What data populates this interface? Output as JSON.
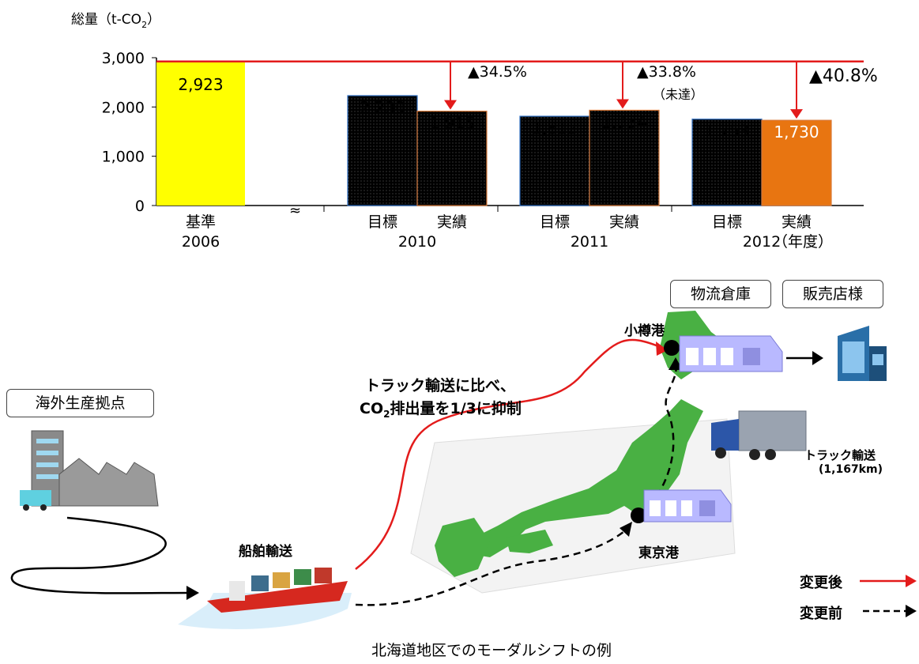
{
  "chart_data": {
    "type": "bar",
    "ylabel": "総量（t-CO",
    "ylabel_sub": "2",
    "ylabel_close": "）",
    "ylim": [
      0,
      3000
    ],
    "yticks": [
      "3,000",
      "2,000",
      "1,000",
      "0"
    ],
    "ytick_values": [
      3000,
      2000,
      1000,
      0
    ],
    "baseline_value": 2923,
    "bars": [
      {
        "label": "基準",
        "year": "2006",
        "value": 2923,
        "value_label": "2,923",
        "kind": "baseline"
      },
      {
        "label": "目標",
        "year": "2010",
        "value": 2230,
        "value_label": "2,230",
        "kind": "target"
      },
      {
        "label": "実績",
        "year": "2010",
        "value": 1915,
        "value_label": "1,915",
        "kind": "actual"
      },
      {
        "label": "目標",
        "year": "2011",
        "value": 1812,
        "value_label": "1,812",
        "kind": "target"
      },
      {
        "label": "実績",
        "year": "2011",
        "value": 1934,
        "value_label": "1,934",
        "kind": "actual"
      },
      {
        "label": "目標",
        "year": "2012",
        "value": 1753,
        "value_label": "1,753",
        "kind": "target"
      },
      {
        "label": "実績",
        "year": "2012",
        "value": 1730,
        "value_label": "1,730",
        "kind": "actual_highlight"
      }
    ],
    "category_labels": {
      "base": "基準",
      "base_year": "2006",
      "target": "目標",
      "actual": "実績",
      "year_2010": "2010",
      "year_2011": "2011",
      "year_2012": "2012",
      "fiscal_year_suffix": "（年度）",
      "axis_break": "≈"
    },
    "annotations": [
      {
        "text": "▲34.5%",
        "bar_index": 2
      },
      {
        "text": "▲33.8%",
        "note": "（未達）",
        "bar_index": 4
      },
      {
        "text": "▲40.8%",
        "bar_index": 6
      }
    ],
    "colors": {
      "baseline": "#ffff00",
      "target": "#6aa5ea",
      "actual": "#f5b07a",
      "actual_highlight": "#e87511",
      "reference_line": "#e31b1b"
    }
  },
  "diagram": {
    "overseas_label": "海外生産拠点",
    "warehouse_label": "物流倉庫",
    "store_label": "販売店様",
    "ship_label": "船舶輸送",
    "otaru_label": "小樽港",
    "tokyo_label": "東京港",
    "note_line1": "トラック輸送に比べ、",
    "note_line2_a": "CO",
    "note_line2_sub": "2",
    "note_line2_b": "排出量を1/3に抑制",
    "truck_label": "トラック輸送",
    "truck_distance": "(1,167km)",
    "legend_after": "変更後",
    "legend_before": "変更前",
    "caption": "北海道地区でのモーダルシフトの例",
    "colors": {
      "new_route": "#e31b1b",
      "old_route": "#000000",
      "land": "#49b043"
    }
  }
}
